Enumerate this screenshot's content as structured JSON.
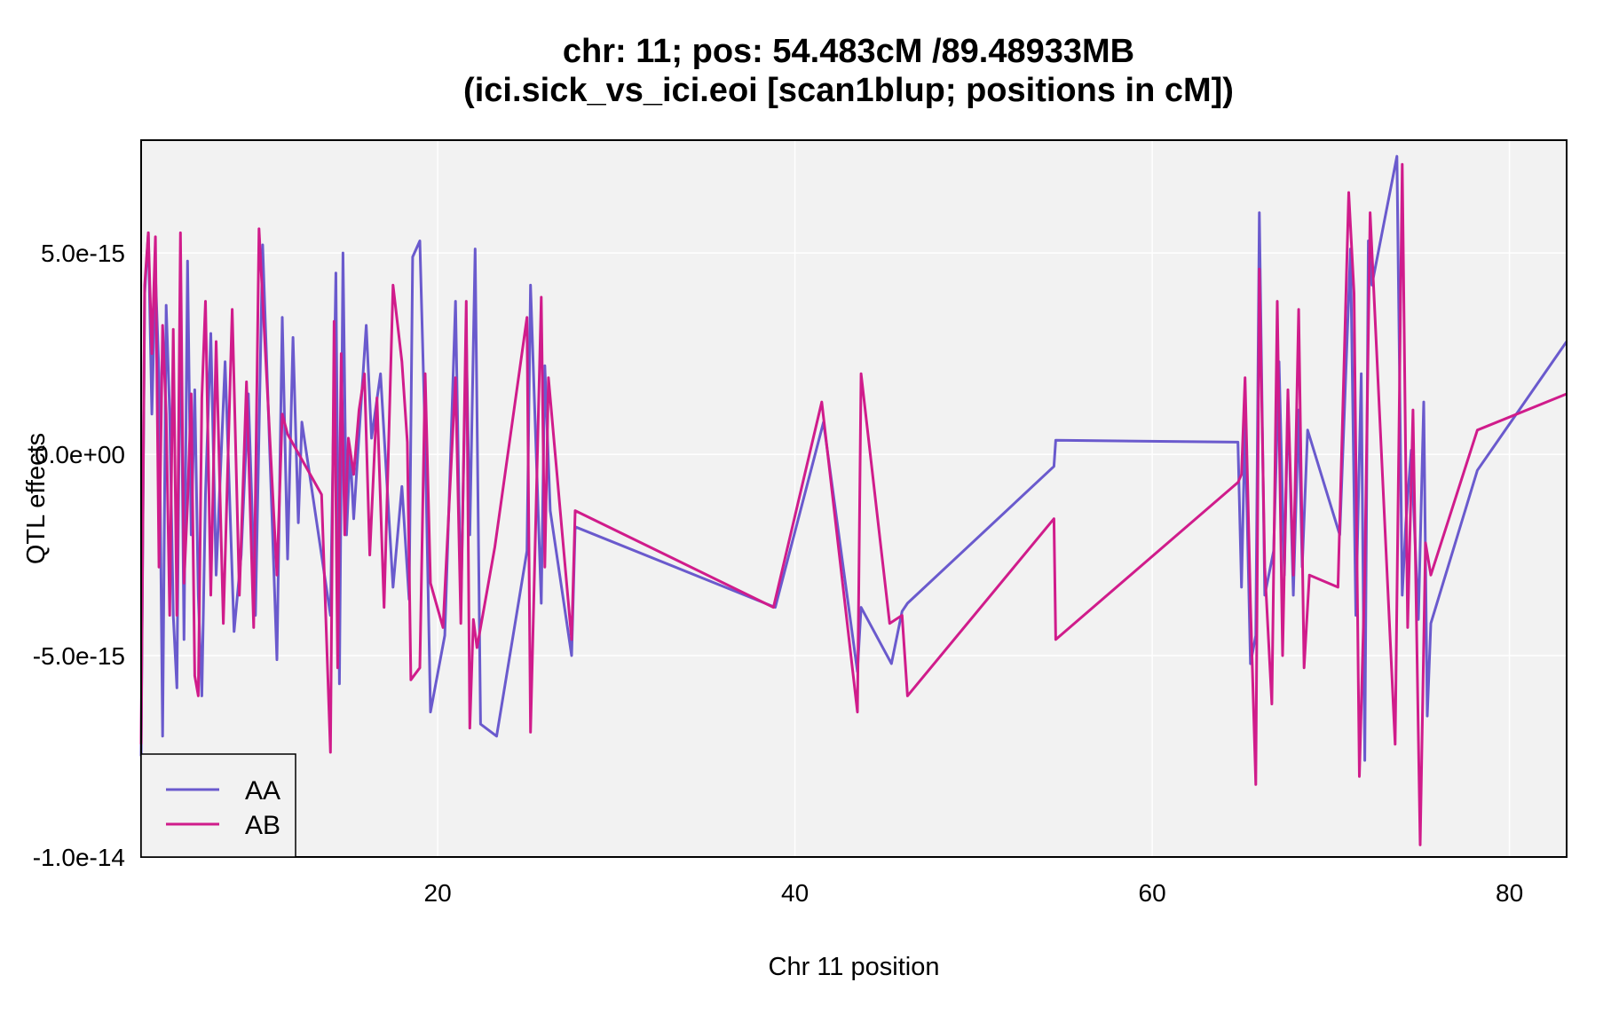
{
  "chart_data": {
    "type": "line",
    "title_line1": "chr: 11; pos: 54.483cM /89.48933MB",
    "title_line2": "(ici.sick_vs_ici.eoi [scan1blup; positions in cM])",
    "xlabel": "Chr 11 position",
    "ylabel": "QTL effects",
    "xlim": [
      3.4,
      83.2
    ],
    "ylim": [
      -1e-14,
      7.8e-15
    ],
    "x_ticks": [
      20,
      40,
      60,
      80
    ],
    "x_tick_labels": [
      "20",
      "40",
      "60",
      "80"
    ],
    "y_ticks": [
      5e-15,
      0,
      -5e-15,
      -1e-14
    ],
    "y_tick_labels": [
      "5.0e-15",
      "0.0e+00",
      "-5.0e-15",
      "-1.0e-14"
    ],
    "grid": true,
    "legend_position": "bottom-left",
    "colors": {
      "panel_bg": "#f2f2f2",
      "grid": "#ffffff",
      "AA": "#6a5acd",
      "AB": "#d01c8b"
    },
    "series": [
      {
        "name": "AA",
        "color": "#6a5acd",
        "x": [
          3.4,
          3.6,
          3.8,
          4.0,
          4.2,
          4.4,
          4.6,
          4.8,
          5.0,
          5.2,
          5.4,
          5.6,
          5.8,
          6.0,
          6.2,
          6.4,
          6.6,
          6.8,
          7.0,
          7.3,
          7.6,
          8.1,
          8.6,
          9.0,
          9.4,
          9.8,
          10.2,
          11.0,
          11.3,
          11.6,
          11.9,
          12.2,
          12.4,
          14.0,
          14.3,
          14.5,
          14.7,
          14.9,
          15.1,
          15.3,
          15.5,
          16.0,
          16.3,
          16.8,
          17.5,
          18.0,
          18.4,
          18.6,
          19.0,
          19.3,
          19.6,
          20.4,
          21.0,
          21.3,
          21.6,
          21.8,
          22.1,
          22.4,
          23.3,
          25.0,
          25.2,
          25.8,
          26.0,
          26.3,
          27.5,
          27.7,
          38.9,
          41.6,
          43.5,
          43.7,
          45.4,
          46.0,
          46.3,
          54.5,
          54.6,
          64.8,
          65.0,
          65.2,
          65.5,
          65.8,
          66.0,
          66.3,
          66.8,
          67.1,
          67.4,
          67.6,
          67.9,
          68.2,
          68.4,
          68.7,
          70.5,
          71.1,
          71.4,
          71.7,
          71.9,
          72.1,
          72.3,
          73.7,
          74.0,
          74.2,
          74.5,
          74.9,
          75.2,
          75.4,
          75.6,
          78.2,
          83.2
        ],
        "y": [
          -7.5e-15,
          4e-15,
          5.5e-15,
          1e-15,
          4.5e-15,
          2e-15,
          -7e-15,
          3.7e-15,
          1e-15,
          -4e-15,
          -5.8e-15,
          4.2e-15,
          -4.6e-15,
          4.8e-15,
          -2e-15,
          1.6e-15,
          -3.5e-15,
          -6e-15,
          -1e-15,
          3e-15,
          -3e-15,
          2.3e-15,
          -4.4e-15,
          -2.5e-15,
          1.5e-15,
          -4e-15,
          5.2e-15,
          -5.1e-15,
          3.4e-15,
          -2.6e-15,
          2.9e-15,
          -1.7e-15,
          8e-16,
          -4e-15,
          4.5e-15,
          -5.7e-15,
          5e-15,
          -2e-15,
          1e-16,
          -1.6e-15,
          -2e-16,
          3.2e-15,
          4e-16,
          2e-15,
          -3.3e-15,
          -8e-16,
          -3.6e-15,
          4.9e-15,
          5.3e-15,
          4e-16,
          -6.4e-15,
          -4.5e-15,
          3.8e-15,
          -3.8e-15,
          3e-15,
          -2e-15,
          5.1e-15,
          -6.7e-15,
          -7e-15,
          -2.4e-15,
          4.2e-15,
          -3.7e-15,
          2.2e-15,
          -1.4e-15,
          -5e-15,
          -1.8e-15,
          -3.8e-15,
          8e-16,
          -5.4e-15,
          -3.8e-15,
          -5.2e-15,
          -3.9e-15,
          -3.7e-15,
          -3e-16,
          3.5e-16,
          3e-16,
          -3.3e-15,
          8e-16,
          -5.2e-15,
          -4.5e-15,
          6e-15,
          -3.5e-15,
          -2.4e-15,
          2.3e-15,
          -3e-15,
          1.4e-15,
          -3.5e-15,
          1.1e-15,
          -2.8e-15,
          6e-16,
          -2e-15,
          5.1e-15,
          -4e-15,
          2e-15,
          -7.6e-15,
          5.3e-15,
          4.2e-15,
          7.4e-15,
          -3.5e-15,
          -1.7e-15,
          1e-16,
          -4.1e-15,
          1.3e-15,
          -6.5e-15,
          -4.2e-15,
          -4e-16,
          2.8e-15
        ]
      },
      {
        "name": "AB",
        "color": "#d01c8b",
        "x": [
          3.4,
          3.6,
          3.8,
          4.0,
          4.2,
          4.4,
          4.6,
          4.8,
          5.0,
          5.2,
          5.4,
          5.6,
          5.8,
          6.0,
          6.2,
          6.4,
          6.6,
          6.8,
          7.0,
          7.3,
          7.6,
          8.0,
          8.5,
          8.9,
          9.3,
          9.7,
          10.0,
          11.0,
          11.3,
          11.6,
          13.5,
          14.0,
          14.2,
          14.4,
          14.6,
          14.8,
          15.0,
          15.3,
          15.6,
          15.9,
          16.2,
          16.6,
          17.0,
          17.5,
          18.0,
          18.3,
          18.5,
          19.0,
          19.3,
          19.6,
          20.3,
          21.0,
          21.3,
          21.6,
          21.8,
          22.0,
          22.2,
          23.2,
          25.0,
          25.2,
          25.8,
          26.0,
          26.2,
          27.5,
          27.7,
          38.8,
          41.5,
          43.5,
          43.7,
          45.3,
          46.0,
          46.3,
          54.5,
          54.6,
          64.8,
          65.0,
          65.2,
          65.5,
          65.8,
          66.0,
          66.3,
          66.7,
          67.0,
          67.3,
          67.6,
          67.9,
          68.2,
          68.5,
          68.8,
          70.4,
          71.0,
          71.3,
          71.6,
          71.9,
          72.2,
          73.6,
          74.0,
          74.3,
          74.6,
          75.0,
          75.3,
          75.6,
          78.2,
          83.2
        ],
        "y": [
          -7.2e-15,
          4.2e-15,
          5.5e-15,
          2.5e-15,
          5.4e-15,
          -2.8e-15,
          3.2e-15,
          1e-15,
          -4e-15,
          3.1e-15,
          -4e-15,
          5.5e-15,
          -3.2e-15,
          -1.2e-15,
          1.5e-15,
          -5.5e-15,
          -6e-15,
          1.4e-15,
          3.8e-15,
          -3.5e-15,
          2.8e-15,
          -4.2e-15,
          3.6e-15,
          -3.5e-15,
          1.8e-15,
          -4.3e-15,
          5.6e-15,
          -3e-15,
          1e-15,
          5e-16,
          -1e-15,
          -7.4e-15,
          3.3e-15,
          -5.3e-15,
          2.5e-15,
          -2e-15,
          4e-16,
          -5e-16,
          1.1e-15,
          2e-15,
          -2.5e-15,
          1.4e-15,
          -3.8e-15,
          4.2e-15,
          2.3e-15,
          3e-16,
          -5.6e-15,
          -5.3e-15,
          2e-15,
          -3.2e-15,
          -4.3e-15,
          1.9e-15,
          -4.2e-15,
          3.8e-15,
          -6.8e-15,
          -4.1e-15,
          -4.8e-15,
          -2.3e-15,
          3.4e-15,
          -6.9e-15,
          3.9e-15,
          -2.8e-15,
          1.9e-15,
          -4.6e-15,
          -1.4e-15,
          -3.8e-15,
          1.3e-15,
          -6.4e-15,
          2e-15,
          -4.2e-15,
          -4e-15,
          -6e-15,
          -1.6e-15,
          -4.6e-15,
          -7e-16,
          -5e-16,
          1.9e-15,
          -3.7e-15,
          -8.2e-15,
          4.6e-15,
          -2.8e-15,
          -6.2e-15,
          3.8e-15,
          -5e-15,
          1.6e-15,
          -3e-15,
          3.6e-15,
          -5.3e-15,
          -3e-15,
          -3.3e-15,
          6.5e-15,
          4e-15,
          -8e-15,
          -3e-15,
          6e-15,
          -7.2e-15,
          7.2e-15,
          -4.3e-15,
          1.1e-15,
          -9.7e-15,
          -2.2e-15,
          -3e-15,
          6e-16,
          1.5e-15
        ]
      }
    ]
  }
}
